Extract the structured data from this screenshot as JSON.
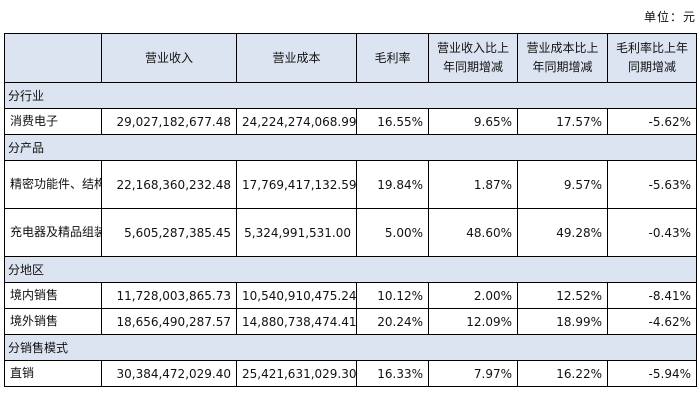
{
  "unit": "单位：元",
  "headers": [
    "",
    "营业收入",
    "营业成本",
    "毛利率",
    "营业收入比上年同期增减",
    "营业成本比上年同期增减",
    "毛利率比上年同期增减"
  ],
  "sections": [
    {
      "title": "分行业",
      "rows": [
        {
          "label": "消费电子",
          "revenue": "29,027,182,677.48",
          "cost": "24,224,274,068.99",
          "margin": "16.55%",
          "rev_change": "9.65%",
          "cost_change": "17.57%",
          "margin_change": "-5.62%"
        }
      ]
    },
    {
      "title": "分产品",
      "rows": [
        {
          "label": "精密功能件、结构件及模组",
          "revenue": "22,168,360,232.48",
          "cost": "17,769,417,132.59",
          "margin": "19.84%",
          "rev_change": "1.87%",
          "cost_change": "9.57%",
          "margin_change": "-5.63%"
        },
        {
          "label": "充电器及精品组装",
          "revenue": "5,605,287,385.45",
          "cost": "5,324,991,531.00",
          "margin": "5.00%",
          "rev_change": "48.60%",
          "cost_change": "49.28%",
          "margin_change": "-0.43%"
        }
      ]
    },
    {
      "title": "分地区",
      "rows": [
        {
          "label": "境内销售",
          "revenue": "11,728,003,865.73",
          "cost": "10,540,910,475.24",
          "margin": "10.12%",
          "rev_change": "2.00%",
          "cost_change": "12.52%",
          "margin_change": "-8.41%"
        },
        {
          "label": "境外销售",
          "revenue": "18,656,490,287.57",
          "cost": "14,880,738,474.41",
          "margin": "20.24%",
          "rev_change": "12.09%",
          "cost_change": "18.99%",
          "margin_change": "-4.62%"
        }
      ]
    },
    {
      "title": "分销售模式",
      "rows": [
        {
          "label": "直销",
          "revenue": "30,384,472,029.40",
          "cost": "25,421,631,029.30",
          "margin": "16.33%",
          "rev_change": "7.97%",
          "cost_change": "16.22%",
          "margin_change": "-5.94%"
        }
      ]
    }
  ]
}
